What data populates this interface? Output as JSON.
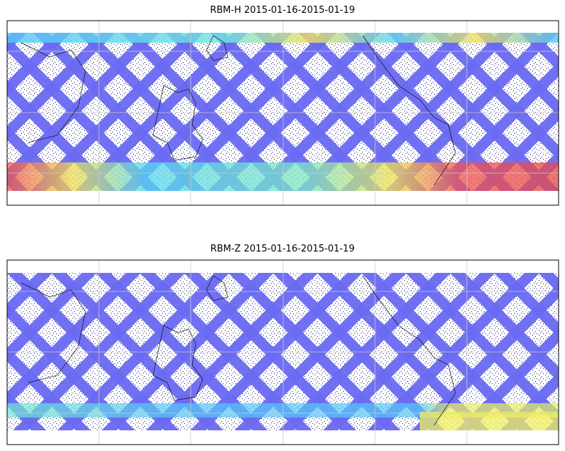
{
  "panels": [
    {
      "title": "RBM-H 2015-01-16-2015-01-19"
    },
    {
      "title": "RBM-Z 2015-01-16-2015-01-19"
    }
  ]
}
